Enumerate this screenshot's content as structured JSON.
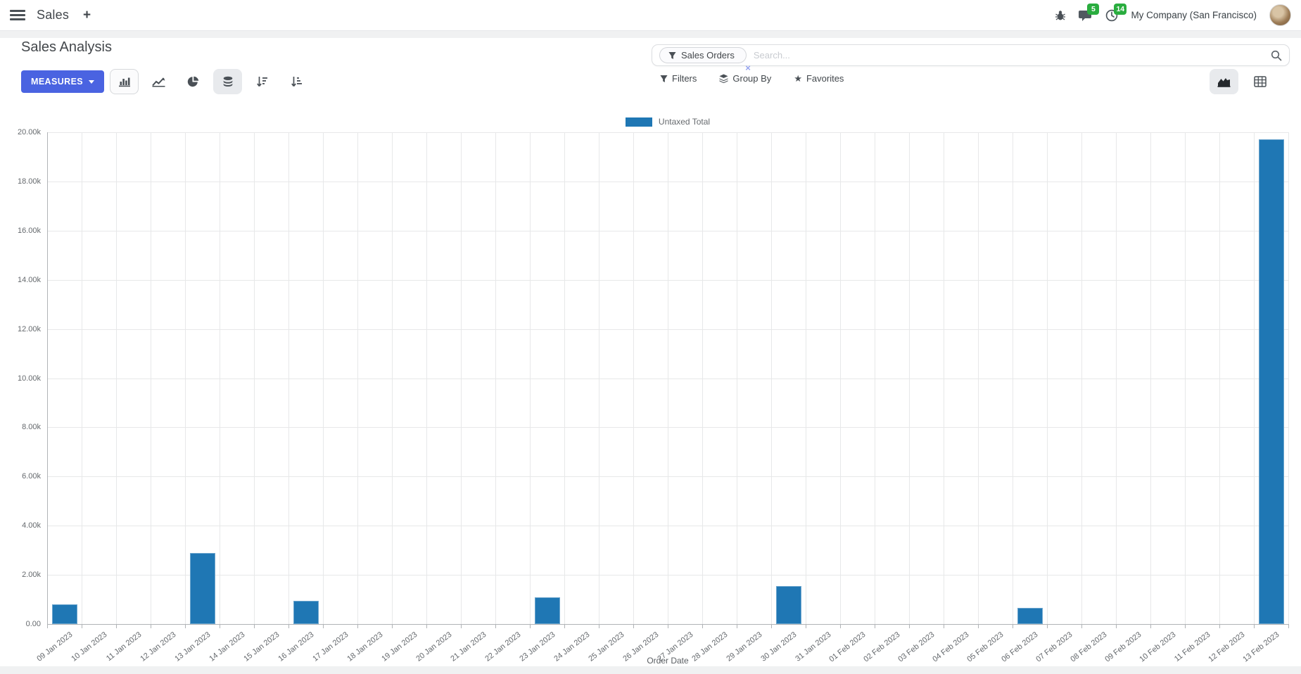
{
  "navbar": {
    "app_name": "Sales",
    "plus_label": "+",
    "messages_badge": "5",
    "activities_badge": "14",
    "company": "My Company (San Francisco)"
  },
  "control_panel": {
    "title": "Sales Analysis",
    "measures_label": "MEASURES",
    "search": {
      "facet_label": "Sales Orders",
      "facet_remove": "×",
      "placeholder": "Search..."
    },
    "filters_label": "Filters",
    "group_by_label": "Group By",
    "favorites_label": "Favorites"
  },
  "icons": {
    "star": "★"
  },
  "colors": {
    "bar": "#1f77b4",
    "primary_button": "#4a63e1",
    "badge_green": "#2aad3f",
    "icon_dark": "#4a5056"
  },
  "chart_data": {
    "type": "bar",
    "legend": "Untaxed Total",
    "legend_position": "top-center",
    "xlabel": "Order Date",
    "ylabel": "",
    "grid": true,
    "ylim": [
      0,
      20000
    ],
    "ytick_labels": [
      "0.00",
      "2.00k",
      "4.00k",
      "6.00k",
      "8.00k",
      "10.00k",
      "12.00k",
      "14.00k",
      "16.00k",
      "18.00k",
      "20.00k"
    ],
    "categories": [
      "09 Jan 2023",
      "10 Jan 2023",
      "11 Jan 2023",
      "12 Jan 2023",
      "13 Jan 2023",
      "14 Jan 2023",
      "15 Jan 2023",
      "16 Jan 2023",
      "17 Jan 2023",
      "18 Jan 2023",
      "19 Jan 2023",
      "20 Jan 2023",
      "21 Jan 2023",
      "22 Jan 2023",
      "23 Jan 2023",
      "24 Jan 2023",
      "25 Jan 2023",
      "26 Jan 2023",
      "27 Jan 2023",
      "28 Jan 2023",
      "29 Jan 2023",
      "30 Jan 2023",
      "31 Jan 2023",
      "01 Feb 2023",
      "02 Feb 2023",
      "03 Feb 2023",
      "04 Feb 2023",
      "05 Feb 2023",
      "06 Feb 2023",
      "07 Feb 2023",
      "08 Feb 2023",
      "09 Feb 2023",
      "10 Feb 2023",
      "11 Feb 2023",
      "12 Feb 2023",
      "13 Feb 2023"
    ],
    "series": [
      {
        "name": "Untaxed Total",
        "values": [
          800,
          0,
          0,
          0,
          2900,
          0,
          0,
          930,
          0,
          0,
          0,
          0,
          0,
          0,
          1100,
          0,
          0,
          0,
          0,
          0,
          0,
          1550,
          0,
          0,
          0,
          0,
          0,
          0,
          650,
          0,
          0,
          0,
          0,
          0,
          0,
          19700
        ]
      }
    ]
  }
}
